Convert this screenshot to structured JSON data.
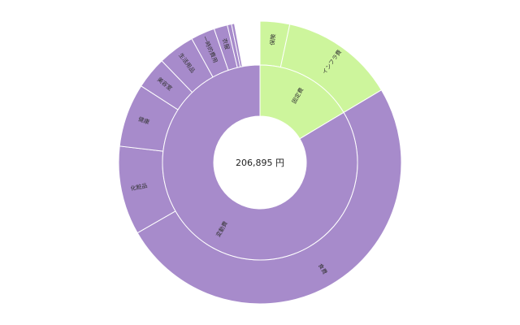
{
  "chart_data": {
    "type": "sunburst",
    "center_label": "206,895 円",
    "colors": {
      "fixed": "#cdf59c",
      "variable": "#a78bcb"
    },
    "inner_ring": [
      {
        "name": "固定費",
        "value": 34000,
        "color_key": "fixed"
      },
      {
        "name": "変動費",
        "value": 172895,
        "color_key": "variable"
      }
    ],
    "outer_ring": [
      {
        "name": "保険",
        "value": 7000,
        "parent": "固定費"
      },
      {
        "name": "インフラ費",
        "value": 27000,
        "parent": "固定費"
      },
      {
        "name": "食費",
        "value": 104000,
        "parent": "変動費"
      },
      {
        "name": "化粧品",
        "value": 21000,
        "parent": "変動費"
      },
      {
        "name": "健康",
        "value": 15000,
        "parent": "変動費"
      },
      {
        "name": "美容室",
        "value": 7600,
        "parent": "変動費"
      },
      {
        "name": "生活用品",
        "value": 8700,
        "parent": "変動費"
      },
      {
        "name": "一時的費用",
        "value": 5700,
        "parent": "変動費"
      },
      {
        "name": "衣服",
        "value": 3200,
        "parent": "変動費"
      },
      {
        "name": "",
        "value": 1000,
        "parent": "変動費"
      },
      {
        "name": "",
        "value": 695,
        "parent": "変動費"
      }
    ]
  }
}
